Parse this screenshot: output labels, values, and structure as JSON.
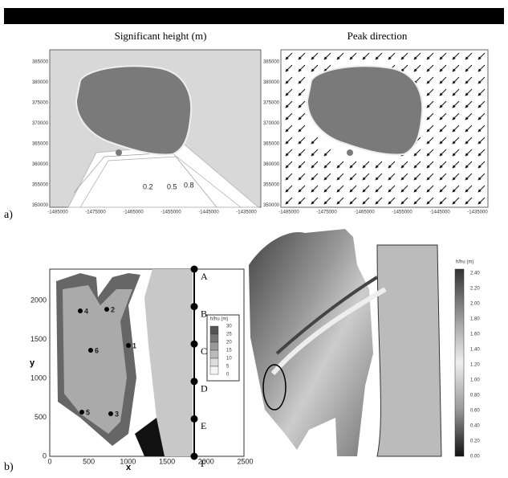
{
  "panel_a": {
    "label": "a)",
    "left_title": "Significant height (m)",
    "right_title": "Peak direction",
    "y_ticks": [
      "385000",
      "380000",
      "375000",
      "370000",
      "365000",
      "360000",
      "355000",
      "350000"
    ],
    "x_ticks": [
      "-1485000",
      "-1475000",
      "-1465000",
      "-1455000",
      "-1445000",
      "-1435000"
    ],
    "contour_labels": [
      "0.2",
      "0.5",
      "0.8"
    ]
  },
  "panel_b": {
    "label": "b)",
    "x_label": "x",
    "y_label": "y",
    "x_ticks": [
      "0",
      "500",
      "1000",
      "1500",
      "2000",
      "2500"
    ],
    "y_ticks": [
      "0",
      "500",
      "1000",
      "1500",
      "2000"
    ],
    "points": [
      "1",
      "2",
      "3",
      "4",
      "5",
      "6"
    ],
    "sections": [
      "A",
      "B",
      "C",
      "D",
      "E",
      "F"
    ],
    "legend_title": "h/hu (m)",
    "legend_levels": [
      "30",
      "25",
      "20",
      "15",
      "10",
      "5",
      "0"
    ],
    "colorbar_title": "h/hu (m)",
    "colorbar_levels": [
      "2.40",
      "2.20",
      "2.00",
      "1.80",
      "1.60",
      "1.40",
      "1.20",
      "1.00",
      "0.80",
      "0.60",
      "0.40",
      "0.20",
      "0.00"
    ]
  }
}
